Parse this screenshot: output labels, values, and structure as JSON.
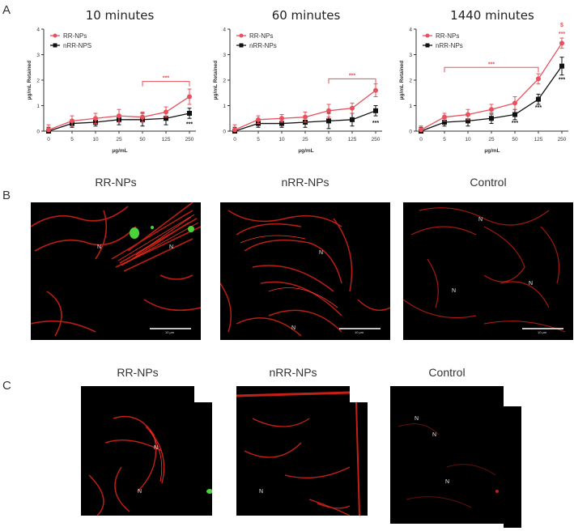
{
  "panels": {
    "a": "A",
    "b": "B",
    "c": "C"
  },
  "chart_data": [
    {
      "type": "line",
      "title": "10 minutes",
      "xlabel": "µg/mL",
      "ylabel": "µg/mL Retained",
      "categories": [
        "0",
        "5",
        "10",
        "25",
        "50",
        "125",
        "250"
      ],
      "ylim": [
        0,
        4
      ],
      "yticks": [
        "0",
        "1",
        "2",
        "3",
        "4"
      ],
      "legend_position": "top-left",
      "series": [
        {
          "name": "RR-NPs",
          "color": "#e8505b",
          "values": [
            0.05,
            0.4,
            0.5,
            0.6,
            0.55,
            0.75,
            1.35
          ],
          "errors": [
            0.2,
            0.2,
            0.2,
            0.25,
            0.2,
            0.2,
            0.3
          ]
        },
        {
          "name": "nRR-NPS",
          "color": "#111111",
          "values": [
            0.0,
            0.3,
            0.35,
            0.45,
            0.45,
            0.5,
            0.7
          ],
          "errors": [
            0.15,
            0.15,
            0.15,
            0.2,
            0.25,
            0.25,
            0.2
          ]
        }
      ],
      "annotations": [
        {
          "text": "***",
          "color": "#e8505b",
          "bracket": [
            "50",
            "250"
          ],
          "y": 1.95
        },
        {
          "text": "***",
          "color": "#111111",
          "at": "250",
          "y": 0.2
        }
      ]
    },
    {
      "type": "line",
      "title": "60 minutes",
      "xlabel": "µg/mL",
      "ylabel": "µg/mL Retained",
      "categories": [
        "0",
        "5",
        "10",
        "25",
        "50",
        "125",
        "250"
      ],
      "ylim": [
        0,
        4
      ],
      "yticks": [
        "0",
        "1",
        "2",
        "3",
        "4"
      ],
      "legend_position": "top-left",
      "series": [
        {
          "name": "RR-NPs",
          "color": "#e8505b",
          "values": [
            0.05,
            0.45,
            0.5,
            0.55,
            0.8,
            0.9,
            1.6
          ],
          "errors": [
            0.2,
            0.15,
            0.15,
            0.2,
            0.25,
            0.2,
            0.25
          ]
        },
        {
          "name": "nRR-NPs",
          "color": "#111111",
          "values": [
            0.0,
            0.3,
            0.3,
            0.35,
            0.4,
            0.45,
            0.8
          ],
          "errors": [
            0.15,
            0.15,
            0.15,
            0.2,
            0.3,
            0.25,
            0.2
          ]
        }
      ],
      "annotations": [
        {
          "text": "***",
          "color": "#e8505b",
          "bracket": [
            "50",
            "250"
          ],
          "y": 2.05
        },
        {
          "text": "***",
          "color": "#111111",
          "at": "250",
          "y": 0.25
        }
      ]
    },
    {
      "type": "line",
      "title": "1440 minutes",
      "xlabel": "µg/mL",
      "ylabel": "µg/mL Retained",
      "categories": [
        "0",
        "5",
        "10",
        "25",
        "50",
        "125",
        "250"
      ],
      "ylim": [
        0,
        4
      ],
      "yticks": [
        "0",
        "1",
        "2",
        "3",
        "4"
      ],
      "legend_position": "top-left",
      "series": [
        {
          "name": "RR-NPs",
          "color": "#e8505b",
          "values": [
            0.05,
            0.55,
            0.65,
            0.85,
            1.1,
            2.05,
            3.45
          ],
          "errors": [
            0.15,
            0.15,
            0.2,
            0.2,
            0.25,
            0.2,
            0.2
          ]
        },
        {
          "name": "nRR-NPs",
          "color": "#111111",
          "values": [
            0.0,
            0.35,
            0.4,
            0.5,
            0.65,
            1.25,
            2.55
          ],
          "errors": [
            0.15,
            0.15,
            0.2,
            0.2,
            0.2,
            0.2,
            0.35
          ]
        }
      ],
      "annotations": [
        {
          "text": "***",
          "color": "#e8505b",
          "bracket": [
            "5",
            "125"
          ],
          "y": 2.5
        },
        {
          "text": "***",
          "color": "#e8505b",
          "at": "250",
          "y": 3.75
        },
        {
          "text": "$",
          "color": "#e8505b",
          "at": "250",
          "y": 4.1
        },
        {
          "text": "***",
          "color": "#111111",
          "at": "50",
          "y": 0.25
        },
        {
          "text": "***",
          "color": "#111111",
          "at": "125",
          "y": 0.85
        },
        {
          "text": "***",
          "color": "#111111",
          "at": "250",
          "y": 1.95
        }
      ]
    }
  ],
  "panel_b": {
    "images": [
      {
        "title": "RR-NPs",
        "n_labels": [
          "N",
          "N"
        ],
        "scale_text": "10 µm"
      },
      {
        "title": "nRR-NPs",
        "n_labels": [
          "N",
          "N"
        ],
        "scale_text": "10 µm"
      },
      {
        "title": "Control",
        "n_labels": [
          "N",
          "N",
          "N"
        ],
        "scale_text": "10 µm"
      }
    ]
  },
  "panel_c": {
    "images": [
      {
        "title": "RR-NPs",
        "n_labels": [
          "N",
          "N"
        ]
      },
      {
        "title": "nRR-NPs",
        "n_labels": [
          "N"
        ]
      },
      {
        "title": "Control",
        "n_labels": [
          "N",
          "N",
          "N"
        ]
      }
    ]
  },
  "colors": {
    "red_series": "#e8505b",
    "black_series": "#111111",
    "fluorescence_red": "#d4261c",
    "fluorescence_green": "#4bd33a"
  }
}
